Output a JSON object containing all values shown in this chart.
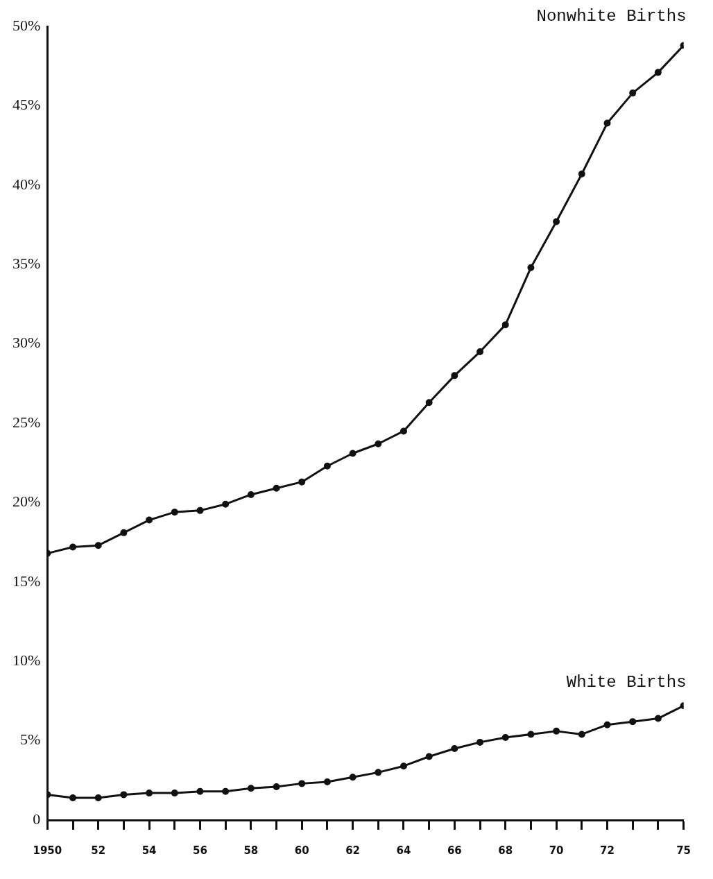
{
  "chart_data": {
    "type": "line",
    "x": [
      1950,
      1951,
      1952,
      1953,
      1954,
      1955,
      1956,
      1957,
      1958,
      1959,
      1960,
      1961,
      1962,
      1963,
      1964,
      1965,
      1966,
      1967,
      1968,
      1969,
      1970,
      1971,
      1972,
      1973,
      1974,
      1975
    ],
    "series": [
      {
        "name": "Nonwhite Births",
        "color": "#111111",
        "values": [
          16.8,
          17.2,
          17.3,
          18.1,
          18.9,
          19.4,
          19.5,
          19.9,
          20.5,
          20.9,
          21.3,
          22.3,
          23.1,
          23.7,
          24.5,
          26.3,
          28.0,
          29.5,
          31.2,
          34.8,
          37.7,
          40.7,
          43.9,
          45.8,
          47.1,
          48.8
        ]
      },
      {
        "name": "White Births",
        "color": "#111111",
        "values": [
          1.6,
          1.4,
          1.4,
          1.6,
          1.7,
          1.7,
          1.8,
          1.8,
          2.0,
          2.1,
          2.3,
          2.4,
          2.7,
          3.0,
          3.4,
          4.0,
          4.5,
          4.9,
          5.2,
          5.4,
          5.6,
          5.4,
          6.0,
          6.2,
          6.4,
          7.2
        ]
      }
    ],
    "xlim": [
      1950,
      1975
    ],
    "xticks": [
      {
        "value": 1950,
        "label": "1950"
      },
      {
        "value": 1951,
        "label": null
      },
      {
        "value": 1952,
        "label": "52"
      },
      {
        "value": 1953,
        "label": null
      },
      {
        "value": 1954,
        "label": "54"
      },
      {
        "value": 1955,
        "label": null
      },
      {
        "value": 1956,
        "label": "56"
      },
      {
        "value": 1957,
        "label": null
      },
      {
        "value": 1958,
        "label": "58"
      },
      {
        "value": 1959,
        "label": null
      },
      {
        "value": 1960,
        "label": "60"
      },
      {
        "value": 1961,
        "label": null
      },
      {
        "value": 1962,
        "label": "62"
      },
      {
        "value": 1963,
        "label": null
      },
      {
        "value": 1964,
        "label": "64"
      },
      {
        "value": 1965,
        "label": null
      },
      {
        "value": 1966,
        "label": "66"
      },
      {
        "value": 1967,
        "label": null
      },
      {
        "value": 1968,
        "label": "68"
      },
      {
        "value": 1969,
        "label": null
      },
      {
        "value": 1970,
        "label": "70"
      },
      {
        "value": 1971,
        "label": null
      },
      {
        "value": 1972,
        "label": "72"
      },
      {
        "value": 1973,
        "label": null
      },
      {
        "value": 1974,
        "label": null
      },
      {
        "value": 1975,
        "label": "75"
      }
    ],
    "ylim": [
      0,
      50
    ],
    "yticks": [
      {
        "value": 0,
        "label": "0"
      },
      {
        "value": 5,
        "label": "5%"
      },
      {
        "value": 10,
        "label": "10%"
      },
      {
        "value": 15,
        "label": "15%"
      },
      {
        "value": 20,
        "label": "20%"
      },
      {
        "value": 25,
        "label": "25%"
      },
      {
        "value": 30,
        "label": "30%"
      },
      {
        "value": 35,
        "label": "35%"
      },
      {
        "value": 40,
        "label": "40%"
      },
      {
        "value": 45,
        "label": "45%"
      },
      {
        "value": 50,
        "label": "50%"
      }
    ],
    "grid": false,
    "legend": false,
    "marker": "circle",
    "line_style": "solid"
  }
}
